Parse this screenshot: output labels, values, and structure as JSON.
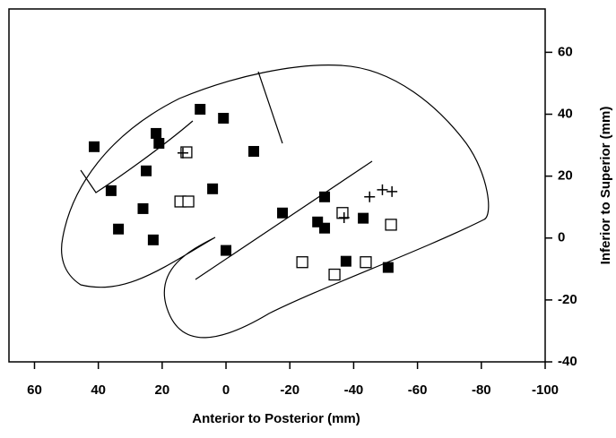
{
  "chart_data": {
    "type": "scatter",
    "xlabel": "Anterior to Posterior (mm)",
    "ylabel": "Inferior to Superior (mm)",
    "xlim": [
      68,
      -100
    ],
    "xticks": [
      60,
      40,
      20,
      0,
      -20,
      -40,
      -60,
      -80,
      -100
    ],
    "ylim": [
      -40,
      74
    ],
    "yticks": [
      60,
      40,
      20,
      0,
      -20,
      -40
    ],
    "series": [
      {
        "marker": "square-filled",
        "color": "#000000",
        "x": [
          41.3,
          36,
          33.7,
          25,
          26,
          21.9,
          22.8,
          21,
          8.1,
          0.8,
          4.2,
          0,
          -8.7,
          -17.7,
          -28.7,
          -30.9,
          -30.9,
          -37.6,
          -43,
          -50.8
        ],
        "values": [
          29.5,
          15.3,
          2.9,
          21.7,
          9.5,
          33.8,
          -0.6,
          30.6,
          41.6,
          38.7,
          15.9,
          -4,
          28,
          8.1,
          5.2,
          13.3,
          3.2,
          -7.5,
          6.4,
          -9.5
        ]
      },
      {
        "marker": "square-open",
        "color": "#000000",
        "x": [
          12.4,
          14.3,
          11.8,
          -23.9,
          -34,
          -36.5,
          -43.8,
          -51.7
        ],
        "values": [
          27.7,
          11.8,
          11.8,
          -7.8,
          -11.8,
          8.1,
          -7.8,
          4.3
        ]
      },
      {
        "marker": "plus",
        "color": "#000000",
        "x": [
          13.5,
          -37,
          -45,
          -49,
          -52
        ],
        "values": [
          27.5,
          6.6,
          13.3,
          15.6,
          15
        ]
      }
    ]
  }
}
